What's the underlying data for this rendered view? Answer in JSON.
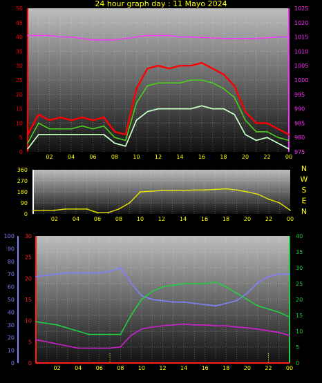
{
  "title": "24 hour graph day : 11 Mayo 2024",
  "colors": {
    "wind_gust": "#ff0000",
    "wind_avg": "#4ccf1b",
    "wind_speed": "#c8ffc8",
    "pressure": "#ff33ff",
    "wind_dir": "#e8e800",
    "humidity": "#8080ff",
    "dewpoint": "#d020d0",
    "temperature": "#20d040",
    "rain": "#ff2020"
  },
  "chart_data": [
    {
      "type": "line",
      "panel": "wind-speed-and-pressure",
      "x_ticks": [
        "02",
        "04",
        "06",
        "08",
        "10",
        "12",
        "14",
        "16",
        "18",
        "20",
        "22",
        "00"
      ],
      "left_ylim": [
        0,
        50
      ],
      "left_ticks": [
        "0",
        "5",
        "10",
        "15",
        "20",
        "25",
        "30",
        "35",
        "40",
        "45",
        "50"
      ],
      "right_ylim": [
        975,
        1025
      ],
      "right_ticks": [
        "975",
        "980",
        "985",
        "990",
        "995",
        "1000",
        "1005",
        "1010",
        "1015",
        "1020",
        "1025"
      ],
      "x": [
        0,
        1,
        2,
        3,
        4,
        5,
        6,
        7,
        8,
        9,
        10,
        11,
        12,
        13,
        14,
        15,
        16,
        17,
        18,
        19,
        20,
        21,
        22,
        23,
        24
      ],
      "series": [
        {
          "key": "wind_gust",
          "axis": "left",
          "values": [
            6,
            13,
            11,
            12,
            11,
            12,
            11,
            12,
            7,
            6,
            22,
            29,
            30,
            29,
            30,
            30,
            31,
            29,
            27,
            23,
            14,
            10,
            10,
            8,
            6
          ]
        },
        {
          "key": "wind_avg",
          "axis": "left",
          "values": [
            3,
            10,
            8,
            8,
            8,
            9,
            8,
            9,
            5,
            4,
            17,
            23,
            24,
            24,
            24,
            25,
            25,
            24,
            22,
            19,
            11,
            7,
            7,
            5,
            4
          ]
        },
        {
          "key": "wind_speed",
          "axis": "left",
          "values": [
            1,
            6,
            6,
            6,
            6,
            6,
            6,
            6,
            3,
            2,
            11,
            14,
            15,
            15,
            15,
            15,
            16,
            15,
            15,
            13,
            6,
            4,
            5,
            3,
            1
          ]
        },
        {
          "key": "pressure",
          "axis": "right",
          "values": [
            1015.5,
            1015.5,
            1015.5,
            1015,
            1015,
            1014.5,
            1014,
            1014,
            1014,
            1014.5,
            1015,
            1015.5,
            1015.5,
            1015.5,
            1015,
            1015,
            1014.8,
            1014.7,
            1014.5,
            1014.5,
            1014.5,
            1014.5,
            1014.7,
            1015,
            1015
          ]
        }
      ]
    },
    {
      "type": "line",
      "panel": "wind-direction",
      "x_ticks": [
        "02",
        "04",
        "06",
        "08",
        "10",
        "12",
        "14",
        "16",
        "18",
        "20",
        "22",
        "00"
      ],
      "ylim": [
        0,
        360
      ],
      "left_ticks": [
        "0",
        "90",
        "180",
        "270",
        "360"
      ],
      "right_labels": [
        "N",
        "W",
        "S",
        "E",
        "N"
      ],
      "x": [
        0,
        1,
        2,
        3,
        4,
        5,
        6,
        7,
        8,
        9,
        10,
        11,
        12,
        13,
        14,
        15,
        16,
        17,
        18,
        19,
        20,
        21,
        22,
        23,
        24
      ],
      "series": [
        {
          "key": "wind_dir",
          "axis": "left",
          "values": [
            30,
            30,
            30,
            40,
            40,
            40,
            10,
            10,
            40,
            90,
            180,
            185,
            190,
            190,
            190,
            195,
            195,
            200,
            205,
            195,
            180,
            160,
            120,
            90,
            30
          ]
        }
      ]
    },
    {
      "type": "line",
      "panel": "humidity-temperature",
      "x_ticks": [
        "02",
        "04",
        "06",
        "08",
        "10",
        "12",
        "14",
        "16",
        "18",
        "20",
        "22",
        "00"
      ],
      "far_left_ylim": [
        0,
        100
      ],
      "far_left_ticks": [
        "0",
        "10",
        "20",
        "30",
        "40",
        "50",
        "60",
        "70",
        "80",
        "90",
        "100"
      ],
      "left_ylim": [
        0,
        30
      ],
      "left_ticks": [
        "0",
        "5",
        "10",
        "15",
        "20",
        "25",
        "30"
      ],
      "right_ylim": [
        0,
        40
      ],
      "right_ticks": [
        "0",
        "5",
        "10",
        "15",
        "20",
        "25",
        "30",
        "35",
        "40"
      ],
      "x": [
        0,
        1,
        2,
        3,
        4,
        5,
        6,
        7,
        8,
        9,
        10,
        11,
        12,
        13,
        14,
        15,
        16,
        17,
        18,
        19,
        20,
        21,
        22,
        23,
        24
      ],
      "series": [
        {
          "key": "humidity",
          "axis": "far_left",
          "values": [
            68,
            69,
            70,
            71,
            71,
            71,
            71,
            72,
            75,
            63,
            53,
            50,
            49,
            48,
            48,
            47,
            46,
            45,
            47,
            49,
            55,
            63,
            68,
            70,
            70
          ]
        },
        {
          "key": "temperature",
          "axis": "right",
          "values": [
            13,
            12.5,
            12,
            11,
            10,
            9,
            9,
            9,
            9,
            15,
            20,
            22.5,
            24,
            24.5,
            25,
            25,
            25,
            25.5,
            24,
            22,
            20,
            18,
            17,
            16,
            14.5
          ]
        },
        {
          "key": "dewpoint",
          "axis": "left",
          "values": [
            5.5,
            5,
            4.5,
            4,
            3.5,
            3.5,
            3.5,
            3.5,
            3.8,
            6.5,
            8,
            8.5,
            8.8,
            9,
            9.2,
            9,
            9,
            8.8,
            8.8,
            8.5,
            8.3,
            8,
            7.6,
            7.2,
            6.5
          ]
        },
        {
          "key": "rain",
          "axis": "left",
          "values": [
            0,
            0,
            0,
            0,
            0,
            0,
            0,
            0,
            0,
            0,
            0,
            0,
            0,
            0,
            0,
            0,
            0,
            0,
            0,
            0,
            0,
            0,
            0,
            0,
            0
          ]
        }
      ]
    }
  ]
}
